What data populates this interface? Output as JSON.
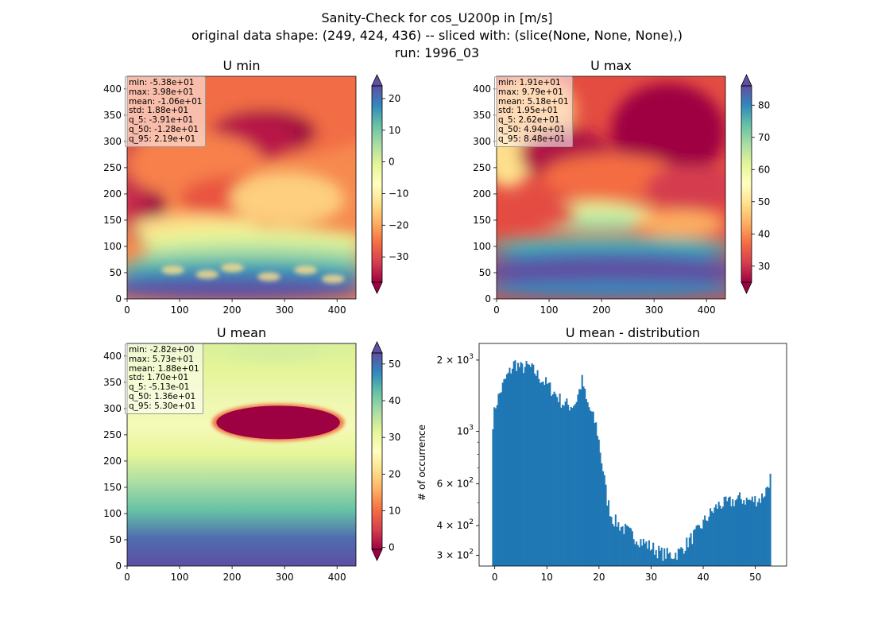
{
  "figure": {
    "title_lines": [
      "Sanity-Check for cos_U200p in [m/s]",
      "original data shape: (249, 424, 436) -- sliced with: (slice(None, None, None),)",
      "run: 1996_03"
    ]
  },
  "chart_data": [
    {
      "type": "heatmap",
      "title": "U min",
      "xlim": [
        0,
        436
      ],
      "ylim": [
        0,
        424
      ],
      "xticks": [
        0,
        100,
        200,
        300,
        400
      ],
      "yticks": [
        0,
        50,
        100,
        150,
        200,
        250,
        300,
        350,
        400
      ],
      "colormap": "Spectral",
      "colorbar": {
        "vmin": -38,
        "vmax": 24,
        "ticks": [
          -30,
          -20,
          -10,
          0,
          10,
          20
        ],
        "tick_labels": [
          "−30",
          "−20",
          "−10",
          "0",
          "10",
          "20"
        ]
      },
      "stats": [
        "min: -5.38e+01",
        "max: 3.98e+01",
        "mean: -1.06e+01",
        "std: 1.88e+01",
        "q_5: -3.91e+01",
        "q_50: -1.28e+01",
        "q_95: 2.19e+01"
      ]
    },
    {
      "type": "heatmap",
      "title": "U max",
      "xlim": [
        0,
        436
      ],
      "ylim": [
        0,
        424
      ],
      "xticks": [
        0,
        100,
        200,
        300,
        400
      ],
      "yticks": [
        0,
        50,
        100,
        150,
        200,
        250,
        300,
        350,
        400
      ],
      "colormap": "Spectral",
      "colorbar": {
        "vmin": 25,
        "vmax": 86,
        "ticks": [
          30,
          40,
          50,
          60,
          70,
          80
        ],
        "tick_labels": [
          "30",
          "40",
          "50",
          "60",
          "70",
          "80"
        ]
      },
      "stats": [
        "min: 1.91e+01",
        "max: 9.79e+01",
        "mean: 5.18e+01",
        "std: 1.95e+01",
        "q_5: 2.62e+01",
        "q_50: 4.94e+01",
        "q_95: 8.48e+01"
      ]
    },
    {
      "type": "heatmap",
      "title": "U mean",
      "xlim": [
        0,
        436
      ],
      "ylim": [
        0,
        424
      ],
      "xticks": [
        0,
        100,
        200,
        300,
        400
      ],
      "yticks": [
        0,
        50,
        100,
        150,
        200,
        250,
        300,
        350,
        400
      ],
      "colormap": "Spectral",
      "colorbar": {
        "vmin": -0.5,
        "vmax": 53,
        "ticks": [
          0,
          10,
          20,
          30,
          40,
          50
        ],
        "tick_labels": [
          "0",
          "10",
          "20",
          "30",
          "40",
          "50"
        ]
      },
      "stats": [
        "min: -2.82e+00",
        "max: 5.73e+01",
        "mean: 1.88e+01",
        "std: 1.70e+01",
        "q_5: -5.13e-01",
        "q_50: 1.36e+01",
        "q_95: 5.30e+01"
      ]
    },
    {
      "type": "bar",
      "title": "U mean - distribution",
      "xlabel": "",
      "ylabel": "# of occurrence",
      "y_scale": "log",
      "xlim": [
        -3,
        56
      ],
      "ylim": [
        270,
        2350
      ],
      "xticks": [
        0,
        10,
        20,
        30,
        40,
        50
      ],
      "yticks": [
        {
          "value": 300,
          "mantissa": "3",
          "exponent": "2"
        },
        {
          "value": 400,
          "mantissa": "4",
          "exponent": "2"
        },
        {
          "value": 600,
          "mantissa": "6",
          "exponent": "2"
        },
        {
          "value": 1000,
          "mantissa": "",
          "exponent": "3"
        },
        {
          "value": 2000,
          "mantissa": "2",
          "exponent": "3"
        }
      ],
      "bin_range": [
        -0.5,
        53.0
      ],
      "bar_color": "#1f77b4",
      "anchors": [
        [
          -0.5,
          1050
        ],
        [
          0.2,
          1300
        ],
        [
          1.0,
          1450
        ],
        [
          2.0,
          1650
        ],
        [
          3.0,
          1800
        ],
        [
          3.8,
          1950
        ],
        [
          5.0,
          1850
        ],
        [
          6.5,
          1880
        ],
        [
          7.5,
          1800
        ],
        [
          8.5,
          1700
        ],
        [
          10.0,
          1580
        ],
        [
          11.5,
          1450
        ],
        [
          13.0,
          1320
        ],
        [
          14.5,
          1280
        ],
        [
          15.5,
          1320
        ],
        [
          16.2,
          1480
        ],
        [
          16.8,
          1650
        ],
        [
          17.5,
          1350
        ],
        [
          18.5,
          1200
        ],
        [
          19.5,
          1050
        ],
        [
          20.5,
          750
        ],
        [
          21.5,
          520
        ],
        [
          22.5,
          430
        ],
        [
          24.0,
          400
        ],
        [
          26.0,
          370
        ],
        [
          28.0,
          345
        ],
        [
          30.0,
          325
        ],
        [
          32.0,
          305
        ],
        [
          34.0,
          300
        ],
        [
          35.5,
          310
        ],
        [
          37.0,
          340
        ],
        [
          39.0,
          380
        ],
        [
          41.0,
          440
        ],
        [
          43.0,
          490
        ],
        [
          45.0,
          500
        ],
        [
          47.0,
          520
        ],
        [
          49.0,
          510
        ],
        [
          51.0,
          520
        ],
        [
          52.0,
          560
        ],
        [
          53.0,
          650
        ]
      ]
    }
  ]
}
